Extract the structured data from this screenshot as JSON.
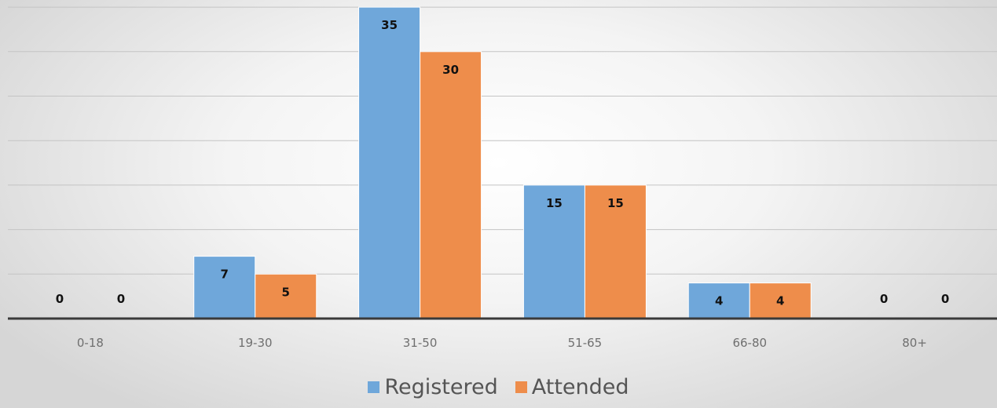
{
  "chart_data": {
    "type": "bar",
    "categories": [
      "0-18",
      "19-30",
      "31-50",
      "51-65",
      "66-80",
      "80+"
    ],
    "series": [
      {
        "name": "Registered",
        "values": [
          0,
          7,
          35,
          15,
          4,
          0
        ],
        "color": "#6fa7da"
      },
      {
        "name": "Attended",
        "values": [
          0,
          5,
          30,
          15,
          4,
          0
        ],
        "color": "#ee8d4b"
      }
    ],
    "ylim": [
      0,
      35
    ],
    "grid": true,
    "legend_position": "bottom",
    "data_labels": true
  }
}
